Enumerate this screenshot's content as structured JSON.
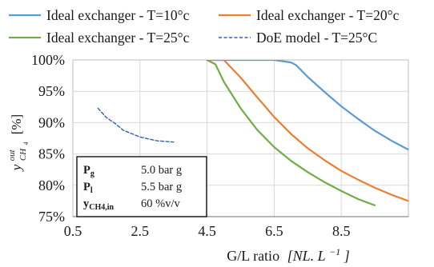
{
  "chart_data": {
    "type": "line",
    "xlabel_prefix": "G/L ratio",
    "xlabel_unit": "[NL. L",
    "xlabel_unit_sup": "−1",
    "xlabel_unit_close": "]",
    "ylabel_main": "y",
    "ylabel_sup": "out",
    "ylabel_sub": "CH",
    "ylabel_subsub": "4",
    "ylabel_unit": "[%]",
    "xlim": [
      0.5,
      10.5
    ],
    "ylim": [
      75,
      100
    ],
    "xticks": [
      0.5,
      2.5,
      4.5,
      6.5,
      8.5
    ],
    "xtick_labels": [
      "0.5",
      "2.5",
      "4.5",
      "6.5",
      "8.5"
    ],
    "yticks": [
      75,
      80,
      85,
      90,
      95,
      100
    ],
    "ytick_labels": [
      "75%",
      "80%",
      "85%",
      "90%",
      "95%",
      "100%"
    ],
    "legend_placement": "top",
    "series": [
      {
        "name": "Ideal exchanger - T=10°c",
        "color": "#5b9bd5",
        "dash": "solid",
        "x": [
          4.5,
          5.0,
          6.0,
          6.5,
          7.0,
          7.15,
          7.5,
          8.0,
          8.5,
          9.0,
          9.5,
          10.0,
          10.5
        ],
        "y": [
          100,
          100,
          100,
          100,
          99.6,
          99.2,
          97.3,
          94.9,
          92.6,
          90.6,
          88.7,
          87.1,
          85.7
        ]
      },
      {
        "name": "Ideal exchanger - T=20°c",
        "color": "#ed7d31",
        "dash": "solid",
        "x": [
          4.5,
          5.0,
          5.25,
          5.5,
          6.0,
          6.5,
          7.0,
          7.5,
          8.0,
          8.5,
          9.0,
          9.5,
          10.0,
          10.5
        ],
        "y": [
          100,
          100,
          98.6,
          97.2,
          94.0,
          90.9,
          88.2,
          85.9,
          84.0,
          82.3,
          80.9,
          79.6,
          78.5,
          77.5
        ]
      },
      {
        "name": "Ideal exchanger - T=25°c",
        "color": "#70ad47",
        "dash": "solid",
        "x": [
          4.5,
          4.75,
          5.0,
          5.5,
          6.0,
          6.5,
          7.0,
          7.5,
          8.0,
          8.5,
          9.0,
          9.5
        ],
        "y": [
          100,
          99.3,
          96.5,
          92.3,
          88.8,
          86.1,
          83.9,
          82.1,
          80.5,
          79.1,
          77.8,
          76.8
        ]
      },
      {
        "name": "DoE model - T=25°C",
        "color": "#2f5fb3",
        "dash": "dashed",
        "x": [
          1.25,
          1.5,
          1.75,
          2.0,
          2.5,
          3.0,
          3.5
        ],
        "y": [
          92.3,
          90.8,
          89.9,
          88.8,
          87.7,
          87.1,
          86.9
        ]
      }
    ],
    "annotation_box": {
      "rows": [
        {
          "label": "P",
          "sub": "g",
          "value": "5.0 bar g"
        },
        {
          "label": "P",
          "sub": "l",
          "value": "5.5 bar g"
        },
        {
          "label": "y",
          "sub": "CH4,in",
          "value": "60 %v/v"
        }
      ]
    }
  }
}
